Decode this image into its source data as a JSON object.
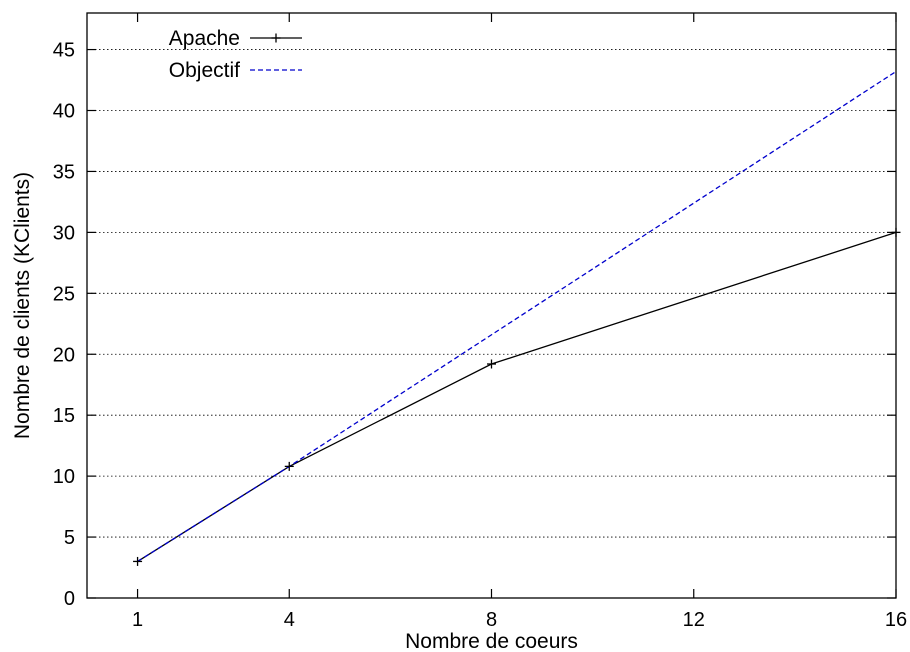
{
  "chart_data": {
    "type": "line",
    "xlabel": "Nombre de coeurs",
    "ylabel": "Nombre de clients (KClients)",
    "xlim": [
      0,
      16
    ],
    "ylim": [
      0,
      48
    ],
    "x_ticks": [
      1,
      4,
      8,
      12,
      16
    ],
    "y_ticks": [
      0,
      5,
      10,
      15,
      20,
      25,
      30,
      35,
      40,
      45
    ],
    "grid": "horizontal dotted",
    "legend_position": "top-left",
    "series": [
      {
        "name": "Apache",
        "style": "solid",
        "marker": "plus",
        "color": "#000000",
        "x": [
          1,
          4,
          8,
          16
        ],
        "y": [
          3.0,
          10.8,
          19.2,
          30.0
        ]
      },
      {
        "name": "Objectif",
        "style": "dashed",
        "marker": "none",
        "color": "#0000cc",
        "x": [
          1,
          4,
          16
        ],
        "y": [
          3.0,
          10.8,
          43.2
        ]
      }
    ]
  }
}
